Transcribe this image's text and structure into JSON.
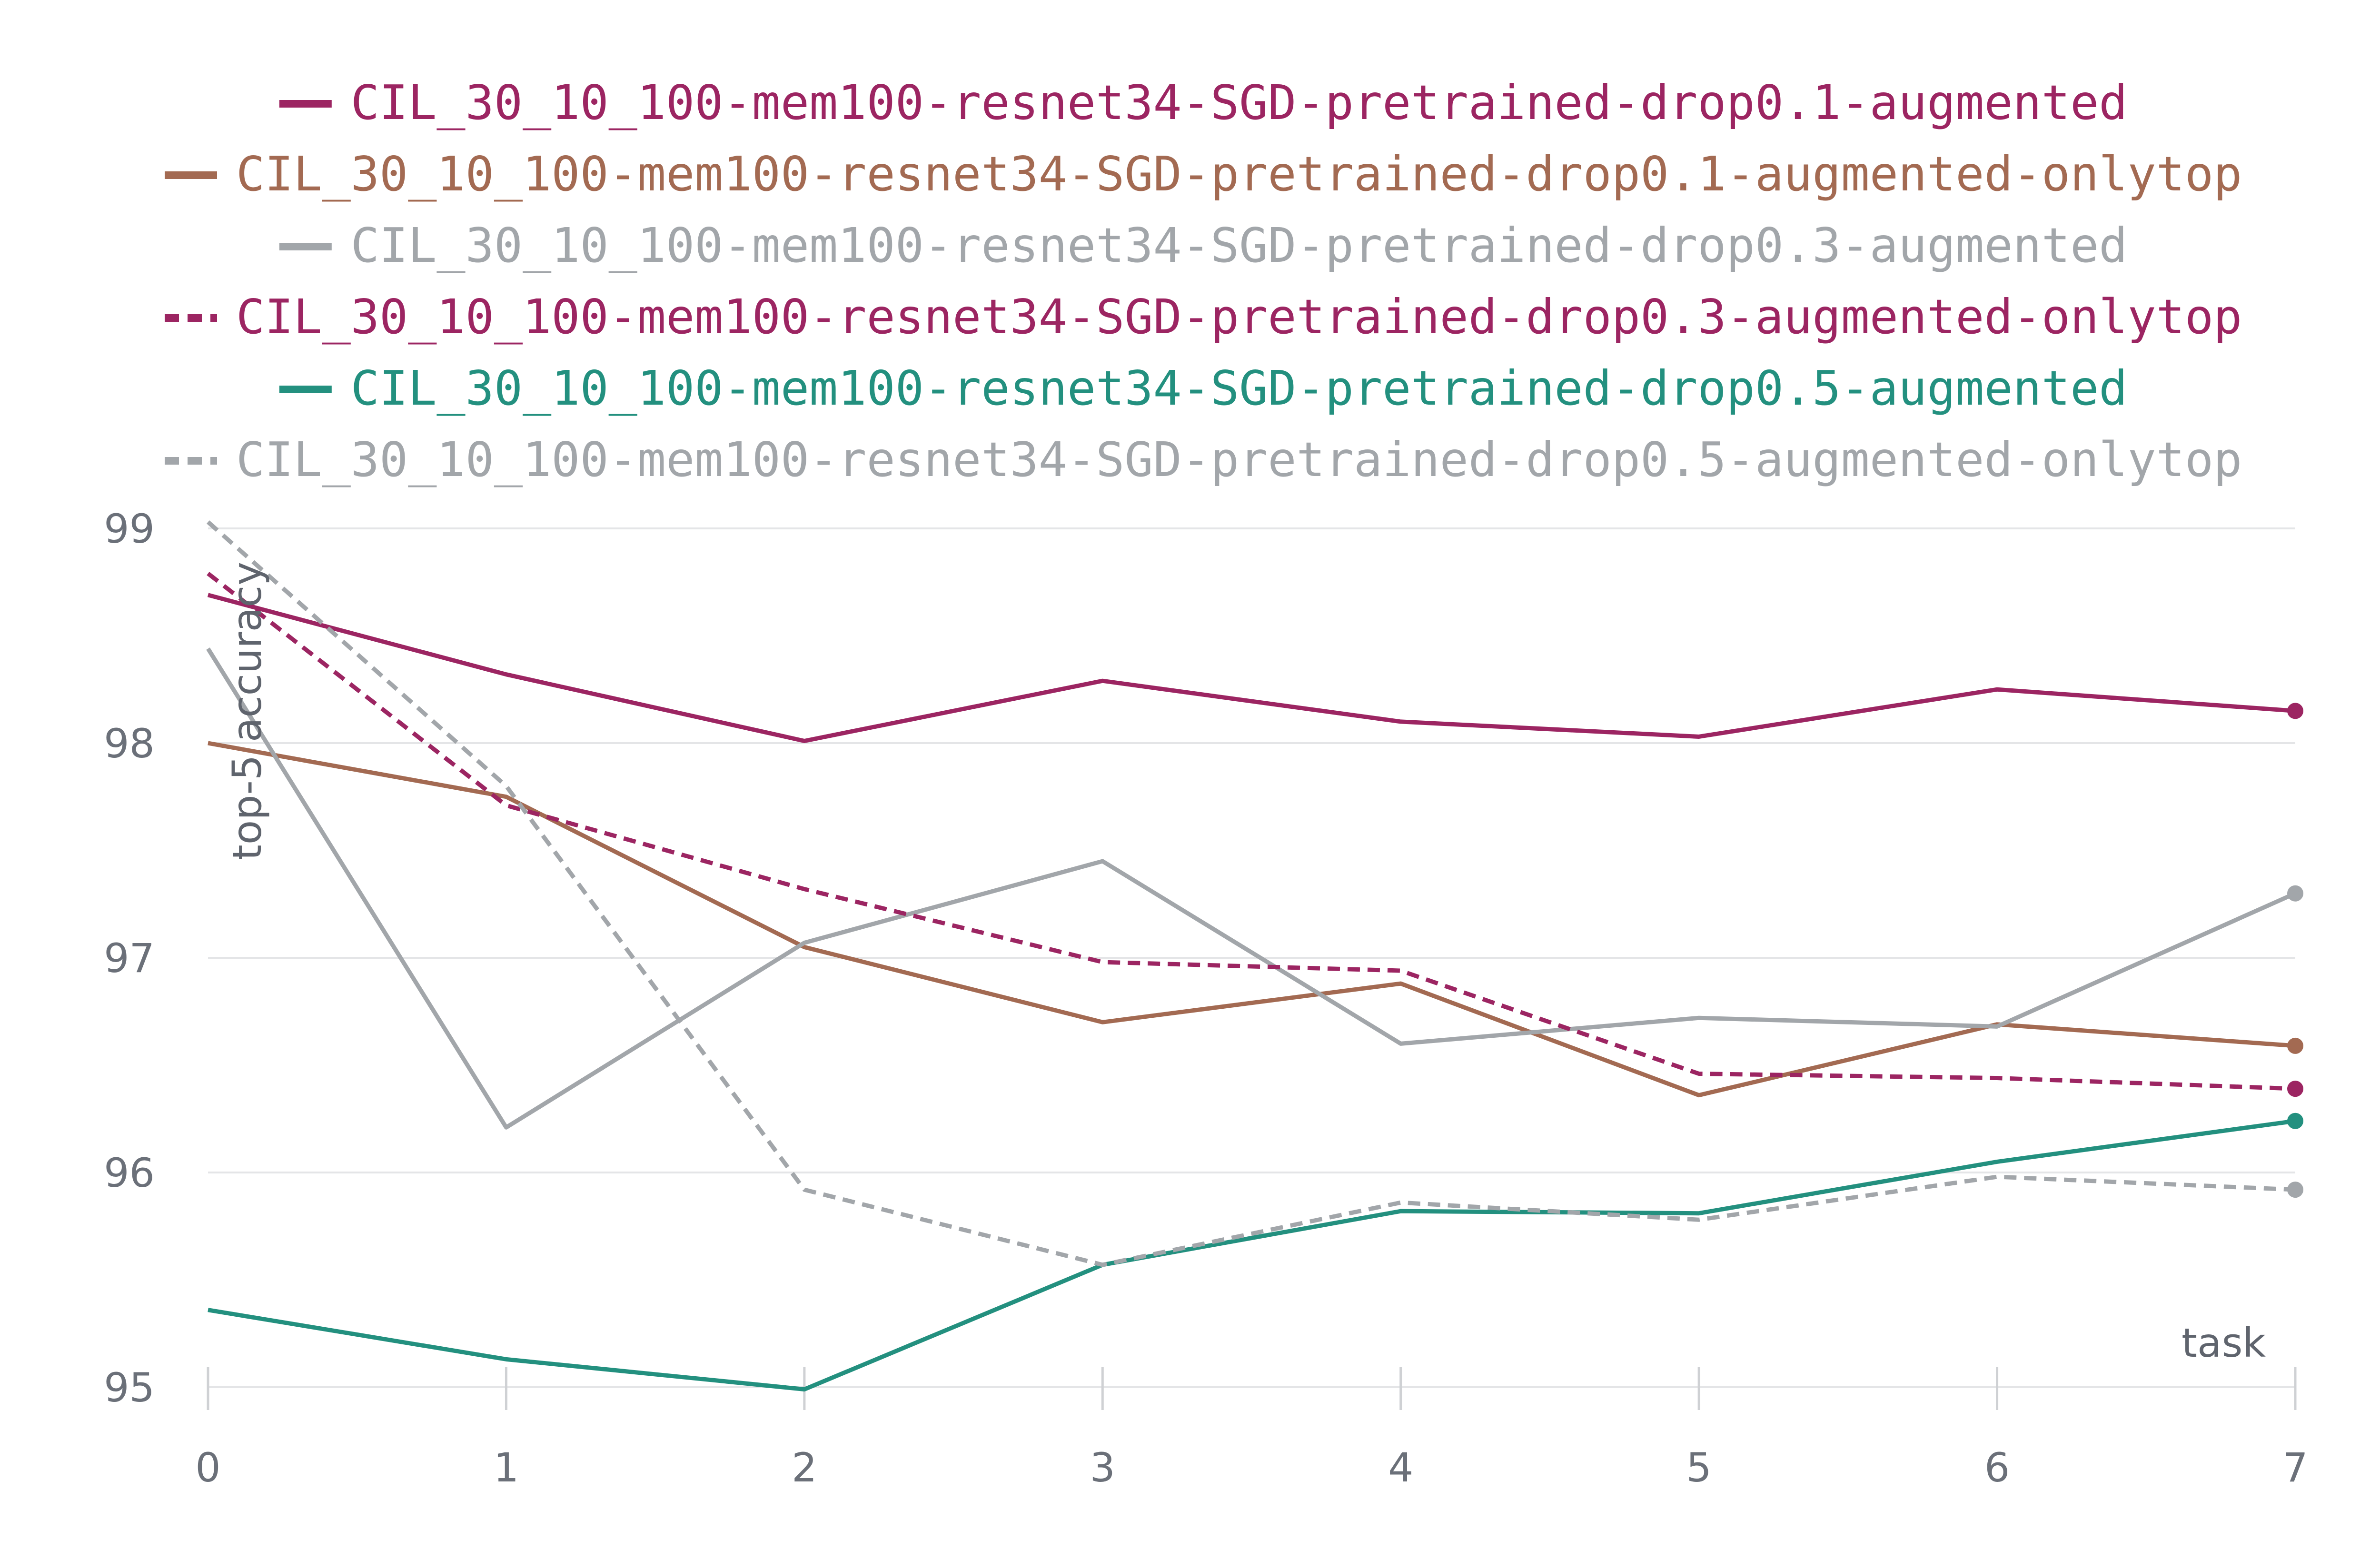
{
  "chart_data": {
    "type": "line",
    "title": "",
    "xlabel": "task",
    "ylabel": "top-5 accuracy",
    "x": [
      0,
      1,
      2,
      3,
      4,
      5,
      6,
      7
    ],
    "xlim": [
      0,
      7
    ],
    "ylim": [
      95,
      99
    ],
    "yticks": [
      95,
      96,
      97,
      98,
      99
    ],
    "xticks": [
      0,
      1,
      2,
      3,
      4,
      5,
      6,
      7
    ],
    "grid": true,
    "legend_position": "top",
    "series": [
      {
        "name": "CIL_30_10_100-mem100-resnet34-SGD-pretrained-drop0.1-augmented",
        "color": "#9c2562",
        "dash": "solid",
        "values": [
          98.69,
          98.32,
          98.01,
          98.29,
          98.1,
          98.03,
          98.25,
          98.15
        ]
      },
      {
        "name": "CIL_30_10_100-mem100-resnet34-SGD-pretrained-drop0.1-augmented-onlytop",
        "color": "#a36a52",
        "dash": "solid",
        "values": [
          98.0,
          97.75,
          97.05,
          96.7,
          96.88,
          96.36,
          96.69,
          96.59
        ]
      },
      {
        "name": "CIL_30_10_100-mem100-resnet34-SGD-pretrained-drop0.3-augmented",
        "color": "#a2a6aa",
        "dash": "solid",
        "values": [
          98.44,
          96.21,
          97.07,
          97.45,
          96.6,
          96.72,
          96.68,
          97.3
        ]
      },
      {
        "name": "CIL_30_10_100-mem100-resnet34-SGD-pretrained-drop0.3-augmented-onlytop",
        "color": "#9c2562",
        "dash": "dashed",
        "values": [
          98.79,
          97.71,
          97.32,
          96.98,
          96.94,
          96.46,
          96.44,
          96.39
        ]
      },
      {
        "name": "CIL_30_10_100-mem100-resnet34-SGD-pretrained-drop0.5-augmented",
        "color": "#23907f",
        "dash": "solid",
        "values": [
          95.36,
          95.13,
          94.99,
          95.57,
          95.82,
          95.81,
          96.05,
          96.24
        ]
      },
      {
        "name": "CIL_30_10_100-mem100-resnet34-SGD-pretrained-drop0.5-augmented-onlytop",
        "color": "#a2a6aa",
        "dash": "dashed",
        "values": [
          99.03,
          97.8,
          95.92,
          95.57,
          95.86,
          95.78,
          95.98,
          95.92
        ]
      }
    ]
  }
}
